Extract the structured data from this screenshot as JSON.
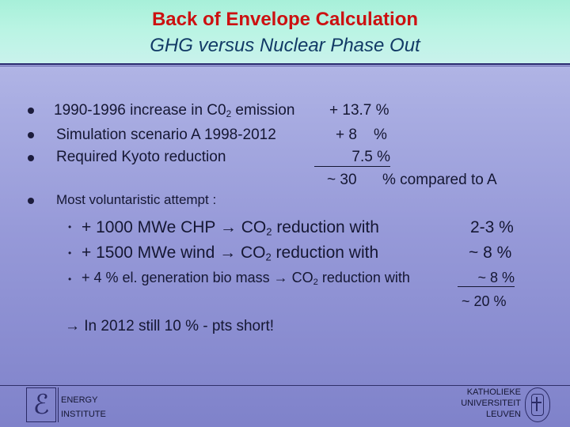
{
  "header": {
    "title": "Back of Envelope Calculation",
    "subtitle": "GHG versus Nuclear Phase Out"
  },
  "bullets": [
    {
      "label_pre": "1990-1996 increase in C0",
      "label_sub": "2",
      "label_post": " emission",
      "value": "+ 13.7 %"
    },
    {
      "label": "Simulation scenario A   1998-2012",
      "value": "+ 8    %"
    },
    {
      "label": "Required Kyoto reduction",
      "value": "7.5 %"
    }
  ],
  "total": {
    "approx": "~ 30",
    "text": "% compared to A"
  },
  "voluntaristic": {
    "heading": "Most voluntaristic attempt :",
    "items": [
      {
        "pre": "+ 1000 MWe  CHP ",
        "arrow": "→",
        "co2": " CO",
        "sub": "2",
        "post": " reduction with",
        "value": "2-3 %"
      },
      {
        "pre": "+ 1500 MWe wind  ",
        "arrow": "→",
        "co2": " CO",
        "sub": "2",
        "post": " reduction with",
        "value": "~ 8 %"
      },
      {
        "pre": "+ 4 % el. generation bio mass  ",
        "arrow": "→",
        "co2": " CO",
        "sub": "2",
        "post": " reduction with",
        "value": "~ 8 %"
      }
    ],
    "sum": "~ 20 %"
  },
  "conclusion": {
    "arrow": "→",
    "text": " In 2012 still 10 % - pts short!"
  },
  "footer": {
    "logo_glyph": "ℰ",
    "left_line1": "ENERGY",
    "left_line2": "INSTITUTE",
    "right_line1": "KATHOLIEKE",
    "right_line2": "UNIVERSITEIT",
    "right_line3": "LEUVEN"
  },
  "colors": {
    "title": "#cc1111",
    "subtitle": "#123a66",
    "header_bg": "#b9f4e3",
    "body_bg": "#9699d8"
  }
}
